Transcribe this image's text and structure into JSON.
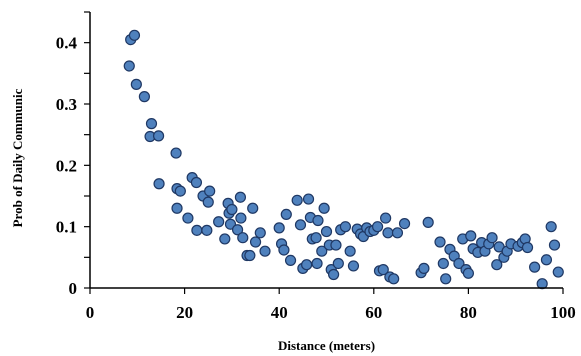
{
  "chart_data": {
    "type": "scatter",
    "title": "",
    "xlabel": "Distance (meters)",
    "ylabel": "Prob of Daily Communic",
    "xlim": [
      0,
      100
    ],
    "ylim": [
      0,
      0.45
    ],
    "x_ticks": [
      "0",
      "20",
      "40",
      "60",
      "80",
      "100"
    ],
    "y_ticks": [
      "0",
      "0.1",
      "0.2",
      "0.3",
      "0.4"
    ],
    "grid": false,
    "legend": "none",
    "marker_color": "#4f81bd",
    "marker_edge": "#1f3864",
    "series": [
      {
        "points": [
          [
            8.3,
            0.362
          ],
          [
            8.6,
            0.405
          ],
          [
            9.4,
            0.412
          ],
          [
            9.8,
            0.332
          ],
          [
            11.5,
            0.312
          ],
          [
            12.7,
            0.247
          ],
          [
            13.0,
            0.268
          ],
          [
            14.5,
            0.248
          ],
          [
            14.6,
            0.17
          ],
          [
            18.2,
            0.22
          ],
          [
            18.4,
            0.162
          ],
          [
            18.4,
            0.13
          ],
          [
            19.1,
            0.158
          ],
          [
            20.7,
            0.114
          ],
          [
            21.6,
            0.18
          ],
          [
            22.5,
            0.172
          ],
          [
            22.6,
            0.094
          ],
          [
            23.9,
            0.15
          ],
          [
            24.7,
            0.094
          ],
          [
            25.0,
            0.14
          ],
          [
            25.3,
            0.158
          ],
          [
            27.2,
            0.108
          ],
          [
            28.5,
            0.08
          ],
          [
            29.2,
            0.138
          ],
          [
            29.4,
            0.122
          ],
          [
            29.7,
            0.104
          ],
          [
            30.0,
            0.128
          ],
          [
            31.2,
            0.095
          ],
          [
            31.8,
            0.148
          ],
          [
            31.9,
            0.114
          ],
          [
            32.3,
            0.082
          ],
          [
            33.2,
            0.053
          ],
          [
            33.8,
            0.053
          ],
          [
            34.4,
            0.13
          ],
          [
            35.0,
            0.075
          ],
          [
            36.0,
            0.09
          ],
          [
            37.0,
            0.06
          ],
          [
            40.0,
            0.098
          ],
          [
            40.5,
            0.072
          ],
          [
            41.0,
            0.062
          ],
          [
            41.5,
            0.12
          ],
          [
            42.4,
            0.045
          ],
          [
            43.8,
            0.143
          ],
          [
            44.5,
            0.103
          ],
          [
            45.0,
            0.032
          ],
          [
            45.8,
            0.038
          ],
          [
            46.2,
            0.145
          ],
          [
            46.6,
            0.115
          ],
          [
            47.0,
            0.08
          ],
          [
            47.8,
            0.082
          ],
          [
            48.0,
            0.04
          ],
          [
            48.2,
            0.11
          ],
          [
            49.0,
            0.06
          ],
          [
            49.5,
            0.13
          ],
          [
            50.0,
            0.092
          ],
          [
            50.6,
            0.07
          ],
          [
            51.0,
            0.03
          ],
          [
            51.5,
            0.022
          ],
          [
            52.0,
            0.07
          ],
          [
            52.5,
            0.04
          ],
          [
            53.0,
            0.095
          ],
          [
            54.0,
            0.1
          ],
          [
            55.0,
            0.06
          ],
          [
            55.7,
            0.036
          ],
          [
            56.5,
            0.096
          ],
          [
            57.2,
            0.088
          ],
          [
            57.8,
            0.084
          ],
          [
            58.5,
            0.098
          ],
          [
            59.2,
            0.092
          ],
          [
            60.0,
            0.094
          ],
          [
            60.8,
            0.1
          ],
          [
            61.2,
            0.028
          ],
          [
            62.0,
            0.03
          ],
          [
            62.5,
            0.114
          ],
          [
            63.0,
            0.09
          ],
          [
            63.4,
            0.018
          ],
          [
            64.2,
            0.015
          ],
          [
            65.0,
            0.09
          ],
          [
            66.5,
            0.105
          ],
          [
            70.0,
            0.025
          ],
          [
            70.6,
            0.032
          ],
          [
            71.5,
            0.107
          ],
          [
            74.0,
            0.075
          ],
          [
            74.7,
            0.04
          ],
          [
            75.2,
            0.015
          ],
          [
            76.1,
            0.063
          ],
          [
            77.0,
            0.052
          ],
          [
            78.0,
            0.04
          ],
          [
            78.8,
            0.08
          ],
          [
            79.5,
            0.03
          ],
          [
            80.0,
            0.024
          ],
          [
            80.5,
            0.085
          ],
          [
            81.0,
            0.064
          ],
          [
            82.0,
            0.058
          ],
          [
            82.8,
            0.074
          ],
          [
            83.5,
            0.06
          ],
          [
            84.3,
            0.072
          ],
          [
            85.0,
            0.082
          ],
          [
            86.0,
            0.038
          ],
          [
            86.5,
            0.067
          ],
          [
            87.5,
            0.05
          ],
          [
            88.2,
            0.06
          ],
          [
            89.0,
            0.072
          ],
          [
            90.5,
            0.068
          ],
          [
            91.4,
            0.074
          ],
          [
            92.0,
            0.08
          ],
          [
            92.5,
            0.066
          ],
          [
            94.0,
            0.034
          ],
          [
            95.6,
            0.007
          ],
          [
            96.5,
            0.046
          ],
          [
            97.5,
            0.1
          ],
          [
            98.2,
            0.07
          ],
          [
            99.0,
            0.026
          ]
        ]
      }
    ]
  }
}
